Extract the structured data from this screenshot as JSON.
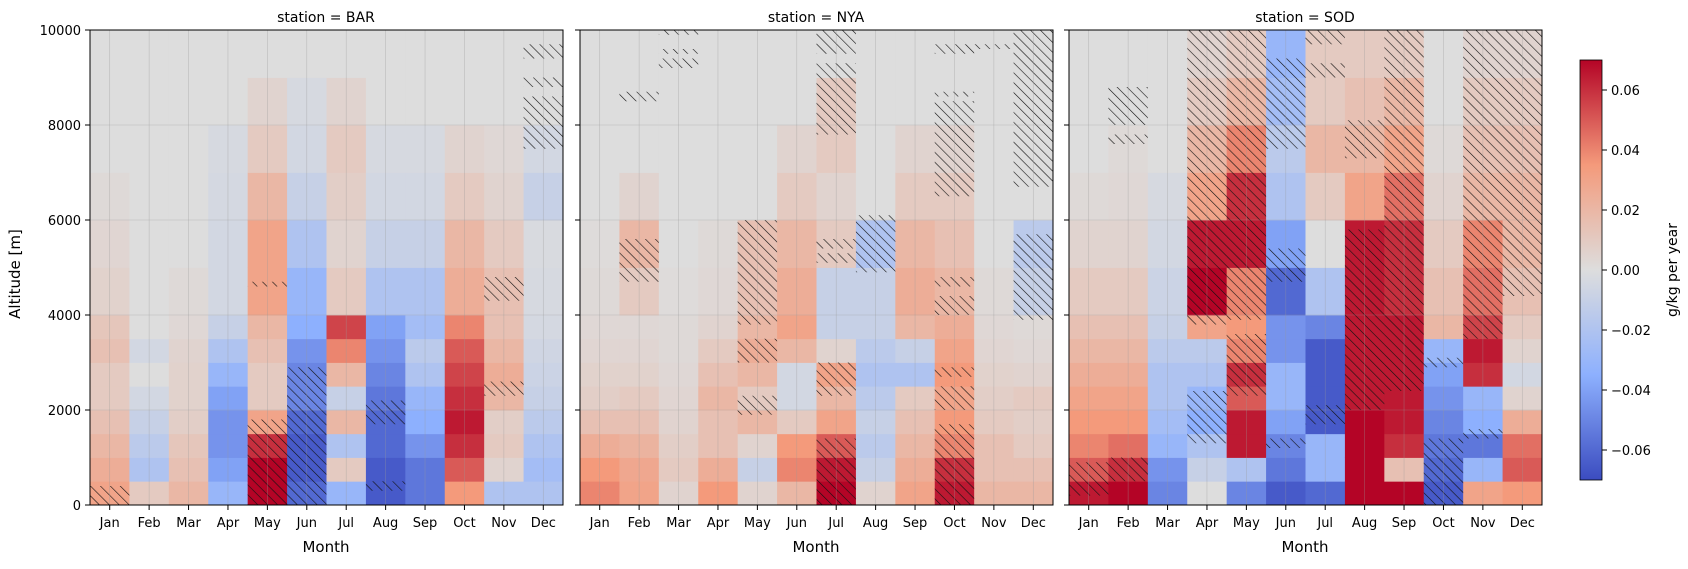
{
  "chart_data": [
    {
      "type": "heatmap",
      "title": "station = BAR",
      "xlabel": "Month",
      "ylabel": "Altitude [m]",
      "categories": [
        "Jan",
        "Feb",
        "Mar",
        "Apr",
        "May",
        "Jun",
        "Jul",
        "Aug",
        "Sep",
        "Oct",
        "Nov",
        "Dec"
      ],
      "ylim": [
        0,
        10000
      ],
      "yticks": [
        "0",
        "2000",
        "4000",
        "6000",
        "8000",
        "10000"
      ],
      "altitude_band_edges": [
        0,
        500,
        1000,
        1500,
        2000,
        2500,
        3000,
        3500,
        4000,
        5000,
        6000,
        7000,
        8000,
        9000,
        10000
      ],
      "values": [
        [
          0.03,
          0.025,
          0.02,
          0.015,
          0.01,
          0.01,
          0.015,
          0.012,
          0.006,
          0.004,
          0.002,
          0,
          0,
          0
        ],
        [
          0.01,
          -0.02,
          -0.015,
          -0.01,
          -0.005,
          0,
          -0.005,
          0,
          0,
          0,
          0,
          0,
          0,
          0
        ],
        [
          0.02,
          0.015,
          0.012,
          0.008,
          0.006,
          0.006,
          0.005,
          0.003,
          0.002,
          0,
          0,
          0,
          0,
          0
        ],
        [
          -0.03,
          -0.04,
          -0.045,
          -0.045,
          -0.04,
          -0.03,
          -0.02,
          -0.01,
          -0.005,
          -0.005,
          -0.004,
          -0.003,
          0,
          0
        ],
        [
          0.07,
          0.07,
          0.06,
          0.03,
          0.01,
          0.01,
          0.015,
          0.02,
          0.03,
          0.03,
          0.02,
          0.01,
          0.005,
          0
        ],
        [
          -0.06,
          -0.065,
          -0.065,
          -0.06,
          -0.05,
          -0.05,
          -0.045,
          -0.035,
          -0.03,
          -0.02,
          -0.01,
          -0.005,
          -0.003,
          0
        ],
        [
          -0.03,
          0.01,
          -0.02,
          0.02,
          -0.01,
          0.02,
          0.04,
          0.055,
          0.01,
          0.005,
          0.008,
          0.01,
          0.005,
          0
        ],
        [
          -0.065,
          -0.065,
          -0.06,
          -0.06,
          -0.055,
          -0.05,
          -0.045,
          -0.04,
          -0.02,
          -0.01,
          -0.005,
          -0.003,
          0,
          0
        ],
        [
          -0.055,
          -0.055,
          -0.045,
          -0.035,
          -0.03,
          -0.02,
          -0.015,
          -0.025,
          -0.02,
          -0.01,
          -0.005,
          -0.003,
          0,
          0
        ],
        [
          0.035,
          0.05,
          0.06,
          0.065,
          0.06,
          0.055,
          0.05,
          0.04,
          0.025,
          0.02,
          0.01,
          0.005,
          0,
          0
        ],
        [
          -0.02,
          0.005,
          0.01,
          0.008,
          0.02,
          0.025,
          0.02,
          0.015,
          0.015,
          0.01,
          0.005,
          0.003,
          0,
          0
        ],
        [
          -0.02,
          -0.025,
          -0.02,
          -0.015,
          -0.01,
          -0.008,
          -0.006,
          -0.004,
          -0.003,
          -0.002,
          -0.01,
          -0.005,
          0,
          0
        ]
      ],
      "hatched_regions": [
        {
          "month": "Jan",
          "y0": 0,
          "y1": 400
        },
        {
          "month": "May",
          "y0": 0,
          "y1": 1800
        },
        {
          "month": "May",
          "y0": 4600,
          "y1": 4700
        },
        {
          "month": "Jun",
          "y0": 0,
          "y1": 2900
        },
        {
          "month": "Aug",
          "y0": 1700,
          "y1": 2200
        },
        {
          "month": "Aug",
          "y0": 300,
          "y1": 500
        },
        {
          "month": "Nov",
          "y0": 2300,
          "y1": 2600
        },
        {
          "month": "Nov",
          "y0": 4300,
          "y1": 4800
        },
        {
          "month": "Dec",
          "y0": 7500,
          "y1": 8600
        },
        {
          "month": "Dec",
          "y0": 8800,
          "y1": 9000
        },
        {
          "month": "Dec",
          "y0": 9400,
          "y1": 9700
        }
      ]
    },
    {
      "type": "heatmap",
      "title": "station = NYA",
      "xlabel": "Month",
      "ylabel": "",
      "categories": [
        "Jan",
        "Feb",
        "Mar",
        "Apr",
        "May",
        "Jun",
        "Jul",
        "Aug",
        "Sep",
        "Oct",
        "Nov",
        "Dec"
      ],
      "ylim": [
        0,
        10000
      ],
      "altitude_band_edges": [
        0,
        500,
        1000,
        1500,
        2000,
        2500,
        3000,
        3500,
        4000,
        5000,
        6000,
        7000,
        8000,
        9000,
        10000
      ],
      "values": [
        [
          0.04,
          0.035,
          0.025,
          0.015,
          0.008,
          0.006,
          0.004,
          0.003,
          0.002,
          0.001,
          0,
          0,
          0,
          0
        ],
        [
          0.03,
          0.028,
          0.022,
          0.015,
          0.01,
          0.006,
          0.004,
          0.003,
          0.01,
          0.02,
          0.005,
          0,
          0,
          0
        ],
        [
          0.005,
          0.01,
          0.008,
          0.005,
          0.004,
          0.003,
          0.002,
          0.002,
          0.001,
          0,
          0,
          0,
          0,
          0
        ],
        [
          0.035,
          0.025,
          0.015,
          0.015,
          0.02,
          0.015,
          0.01,
          0.005,
          0.003,
          0.002,
          0,
          0,
          0,
          0
        ],
        [
          0.005,
          -0.01,
          0.005,
          0.02,
          0.01,
          0.02,
          0.025,
          0.02,
          0.015,
          0.015,
          0,
          0,
          0,
          0
        ],
        [
          0.02,
          0.04,
          0.035,
          0.01,
          -0.005,
          -0.005,
          0.02,
          0.03,
          0.025,
          0.02,
          0.01,
          0.005,
          0,
          0
        ],
        [
          0.07,
          0.065,
          0.05,
          0.03,
          0.02,
          0.03,
          0.005,
          -0.01,
          -0.01,
          0.01,
          0.005,
          0.01,
          0.01,
          0
        ],
        [
          0.005,
          -0.01,
          -0.015,
          -0.01,
          -0.015,
          -0.02,
          -0.015,
          -0.01,
          -0.01,
          -0.02,
          0,
          0,
          0,
          0
        ],
        [
          0.03,
          0.025,
          0.02,
          0.015,
          0.01,
          -0.02,
          -0.01,
          0.02,
          0.025,
          0.02,
          0.01,
          0.005,
          0,
          0
        ],
        [
          0.065,
          0.06,
          0.04,
          0.035,
          0.03,
          0.035,
          0.03,
          0.025,
          0.02,
          0.015,
          0.01,
          0.005,
          0,
          0
        ],
        [
          0.02,
          0.015,
          0.015,
          0.01,
          0.008,
          0.006,
          0.004,
          0.003,
          0.002,
          0,
          0,
          0,
          0,
          0
        ],
        [
          0.02,
          0.015,
          0.01,
          0.008,
          0.01,
          0.005,
          0.003,
          0.002,
          -0.01,
          -0.015,
          0,
          0,
          0,
          0
        ]
      ],
      "hatched_regions": [
        {
          "month": "Feb",
          "y0": 4700,
          "y1": 5600
        },
        {
          "month": "Feb",
          "y0": 8500,
          "y1": 8700
        },
        {
          "month": "Mar",
          "y0": 9200,
          "y1": 9400
        },
        {
          "month": "Mar",
          "y0": 9500,
          "y1": 9600
        },
        {
          "month": "Mar",
          "y0": 9900,
          "y1": 10000
        },
        {
          "month": "Apr",
          "y0": 0,
          "y1": 0
        },
        {
          "month": "May",
          "y0": 1900,
          "y1": 2300
        },
        {
          "month": "May",
          "y0": 3000,
          "y1": 3500
        },
        {
          "month": "May",
          "y0": 3800,
          "y1": 6000
        },
        {
          "month": "Jul",
          "y0": 0,
          "y1": 1400
        },
        {
          "month": "Jul",
          "y0": 2300,
          "y1": 3000
        },
        {
          "month": "Jul",
          "y0": 5100,
          "y1": 5300
        },
        {
          "month": "Jul",
          "y0": 5400,
          "y1": 5600
        },
        {
          "month": "Jul",
          "y0": 7800,
          "y1": 9300
        },
        {
          "month": "Jul",
          "y0": 9500,
          "y1": 10000
        },
        {
          "month": "Aug",
          "y0": 4900,
          "y1": 6100
        },
        {
          "month": "Oct",
          "y0": 0,
          "y1": 1700
        },
        {
          "month": "Oct",
          "y0": 2000,
          "y1": 2500
        },
        {
          "month": "Oct",
          "y0": 2700,
          "y1": 2900
        },
        {
          "month": "Oct",
          "y0": 4000,
          "y1": 4400
        },
        {
          "month": "Oct",
          "y0": 4600,
          "y1": 4800
        },
        {
          "month": "Oct",
          "y0": 6500,
          "y1": 8500
        },
        {
          "month": "Oct",
          "y0": 8600,
          "y1": 8700
        },
        {
          "month": "Oct",
          "y0": 9500,
          "y1": 9700
        },
        {
          "month": "Nov",
          "y0": 9600,
          "y1": 9700
        },
        {
          "month": "Dec",
          "y0": 3900,
          "y1": 5700
        },
        {
          "month": "Dec",
          "y0": 6700,
          "y1": 10000
        }
      ]
    },
    {
      "type": "heatmap",
      "title": "station = SOD",
      "xlabel": "Month",
      "ylabel": "",
      "categories": [
        "Jan",
        "Feb",
        "Mar",
        "Apr",
        "May",
        "Jun",
        "Jul",
        "Aug",
        "Sep",
        "Oct",
        "Nov",
        "Dec"
      ],
      "ylim": [
        0,
        10000
      ],
      "altitude_band_edges": [
        0,
        500,
        1000,
        1500,
        2000,
        2500,
        3000,
        3500,
        4000,
        5000,
        6000,
        7000,
        8000,
        9000,
        10000
      ],
      "values": [
        [
          0.065,
          0.05,
          0.04,
          0.035,
          0.03,
          0.025,
          0.02,
          0.015,
          0.01,
          0.005,
          0.002,
          0,
          0,
          0
        ],
        [
          0.07,
          0.06,
          0.045,
          0.035,
          0.03,
          0.025,
          0.02,
          0.015,
          0.01,
          0.005,
          0.003,
          0.002,
          0,
          0
        ],
        [
          -0.05,
          -0.045,
          -0.03,
          -0.025,
          -0.02,
          -0.02,
          -0.015,
          -0.01,
          -0.008,
          -0.005,
          -0.003,
          0,
          0,
          0
        ],
        [
          0,
          -0.01,
          -0.02,
          -0.035,
          -0.03,
          -0.02,
          -0.015,
          0.03,
          0.07,
          0.065,
          0.03,
          0.02,
          0.01,
          0.005
        ],
        [
          -0.05,
          -0.02,
          0.065,
          0.065,
          0.05,
          0.06,
          0.04,
          0.035,
          0.04,
          0.065,
          0.06,
          0.04,
          0.02,
          0.01
        ],
        [
          -0.065,
          -0.055,
          -0.05,
          -0.04,
          -0.03,
          -0.03,
          -0.045,
          -0.045,
          -0.06,
          -0.04,
          -0.02,
          -0.015,
          -0.025,
          -0.03
        ],
        [
          -0.06,
          -0.03,
          -0.03,
          -0.065,
          -0.065,
          -0.065,
          -0.065,
          -0.05,
          -0.02,
          0,
          0.01,
          0.02,
          0.01,
          0.01
        ],
        [
          0.07,
          0.07,
          0.07,
          0.07,
          0.065,
          0.065,
          0.065,
          0.065,
          0.065,
          0.065,
          0.03,
          0.02,
          0.015,
          0.01
        ],
        [
          0.07,
          0.015,
          0.06,
          0.065,
          0.065,
          0.065,
          0.065,
          0.065,
          0.06,
          0.06,
          0.045,
          0.03,
          0.02,
          0.01
        ],
        [
          -0.065,
          -0.06,
          -0.055,
          -0.05,
          -0.045,
          -0.04,
          -0.03,
          0.02,
          0.015,
          0.01,
          0.005,
          0.002,
          0,
          0
        ],
        [
          0.03,
          -0.03,
          -0.055,
          -0.035,
          -0.03,
          0.06,
          0.065,
          0.055,
          0.045,
          0.04,
          0.02,
          0.015,
          0.01,
          0.005
        ],
        [
          0.035,
          0.05,
          0.045,
          0.025,
          0.005,
          -0.005,
          0.005,
          0.01,
          0.015,
          0.02,
          0.02,
          0.015,
          0.01,
          0.005
        ]
      ],
      "hatched_regions": [
        {
          "month": "Jan",
          "y0": 200,
          "y1": 900
        },
        {
          "month": "Feb",
          "y0": 500,
          "y1": 1000
        },
        {
          "month": "Feb",
          "y0": 7600,
          "y1": 7800
        },
        {
          "month": "Feb",
          "y0": 8000,
          "y1": 8800
        },
        {
          "month": "Apr",
          "y0": 1300,
          "y1": 2400
        },
        {
          "month": "Apr",
          "y0": 3800,
          "y1": 10000
        },
        {
          "month": "May",
          "y0": 2300,
          "y1": 3600
        },
        {
          "month": "May",
          "y0": 3900,
          "y1": 10000
        },
        {
          "month": "Jun",
          "y0": 1200,
          "y1": 1400
        },
        {
          "month": "Jun",
          "y0": 4700,
          "y1": 5400
        },
        {
          "month": "Jun",
          "y0": 7500,
          "y1": 9400
        },
        {
          "month": "Jul",
          "y0": 1700,
          "y1": 2100
        },
        {
          "month": "Jul",
          "y0": 9000,
          "y1": 9300
        },
        {
          "month": "Jul",
          "y0": 9700,
          "y1": 10000
        },
        {
          "month": "Aug",
          "y0": 2000,
          "y1": 5800
        },
        {
          "month": "Aug",
          "y0": 7300,
          "y1": 8100
        },
        {
          "month": "Sep",
          "y0": 2400,
          "y1": 10000
        },
        {
          "month": "Oct",
          "y0": 0,
          "y1": 1400
        },
        {
          "month": "Oct",
          "y0": 2900,
          "y1": 3100
        },
        {
          "month": "Nov",
          "y0": 1400,
          "y1": 1600
        },
        {
          "month": "Nov",
          "y0": 3500,
          "y1": 7600
        },
        {
          "month": "Nov",
          "y0": 7600,
          "y1": 10000
        },
        {
          "month": "Dec",
          "y0": 4400,
          "y1": 10000
        }
      ]
    }
  ],
  "colorbar": {
    "label": "g/kg per year",
    "colormap": "coolwarm",
    "vmin": -0.07,
    "vmax": 0.07,
    "ticks": [
      -0.06,
      -0.04,
      -0.02,
      0.0,
      0.02,
      0.04,
      0.06
    ],
    "tick_labels": [
      "−0.06",
      "−0.04",
      "−0.02",
      "0.00",
      "0.02",
      "0.04",
      "0.06"
    ]
  }
}
